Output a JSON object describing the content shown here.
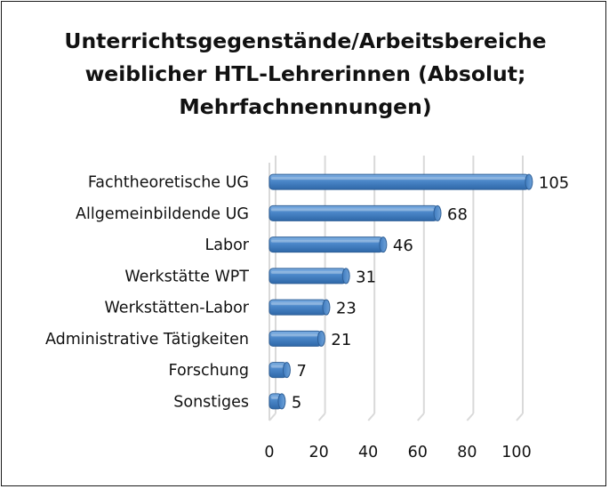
{
  "chart_data": {
    "type": "bar",
    "orientation": "horizontal",
    "title_lines": [
      "Unterrichtsgegenstände/Arbeitsbereiche",
      "weiblicher HTL-Lehrerinnen (Absolut;",
      "Mehrfachnennungen)"
    ],
    "categories": [
      "Fachtheoretische UG",
      "Allgemeinbildende UG",
      "Labor",
      "Werkstätte WPT",
      "Werkstätten-Labor",
      "Administrative Tätigkeiten",
      "Forschung",
      "Sonstiges"
    ],
    "values": [
      105,
      68,
      46,
      31,
      23,
      21,
      7,
      5
    ],
    "xlim": [
      0,
      100
    ],
    "x_ticks": [
      0,
      20,
      40,
      60,
      80,
      100
    ],
    "xlabel": "",
    "ylabel": "",
    "grid": true,
    "legend": "none",
    "bar_color": "#4a86c8",
    "bar_edge_color": "#2e5f97",
    "grid_color": "#d9d9d9"
  }
}
